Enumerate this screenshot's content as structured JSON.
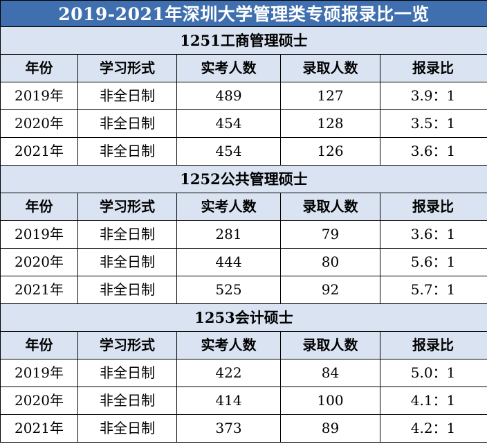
{
  "title": "2019-2021年深圳大学管理类专硕报录比一览",
  "headers": [
    "年份",
    "学习形式",
    "实考人数",
    "录取人数",
    "报录比"
  ],
  "sections": [
    {
      "name": "1251工商管理硕士",
      "rows": [
        [
          "2019年",
          "非全日制",
          "489",
          "127",
          "3.9：1"
        ],
        [
          "2020年",
          "非全日制",
          "454",
          "128",
          "3.5：1"
        ],
        [
          "2021年",
          "非全日制",
          "454",
          "126",
          "3.6：1"
        ]
      ]
    },
    {
      "name": "1252公共管理硕士",
      "rows": [
        [
          "2019年",
          "非全日制",
          "281",
          "79",
          "3.6：1"
        ],
        [
          "2020年",
          "非全日制",
          "444",
          "80",
          "5.6：1"
        ],
        [
          "2021年",
          "非全日制",
          "525",
          "92",
          "5.7：1"
        ]
      ]
    },
    {
      "name": "1253会计硕士",
      "rows": [
        [
          "2019年",
          "非全日制",
          "422",
          "84",
          "5.0：1"
        ],
        [
          "2020年",
          "非全日制",
          "414",
          "100",
          "4.1：1"
        ],
        [
          "2021年",
          "非全日制",
          "373",
          "89",
          "4.2：1"
        ]
      ]
    }
  ],
  "colors": {
    "title_bg": "#3f6fae",
    "title_text": "#ffffff",
    "header_bg": "#dae3f1",
    "border": "#000000"
  }
}
